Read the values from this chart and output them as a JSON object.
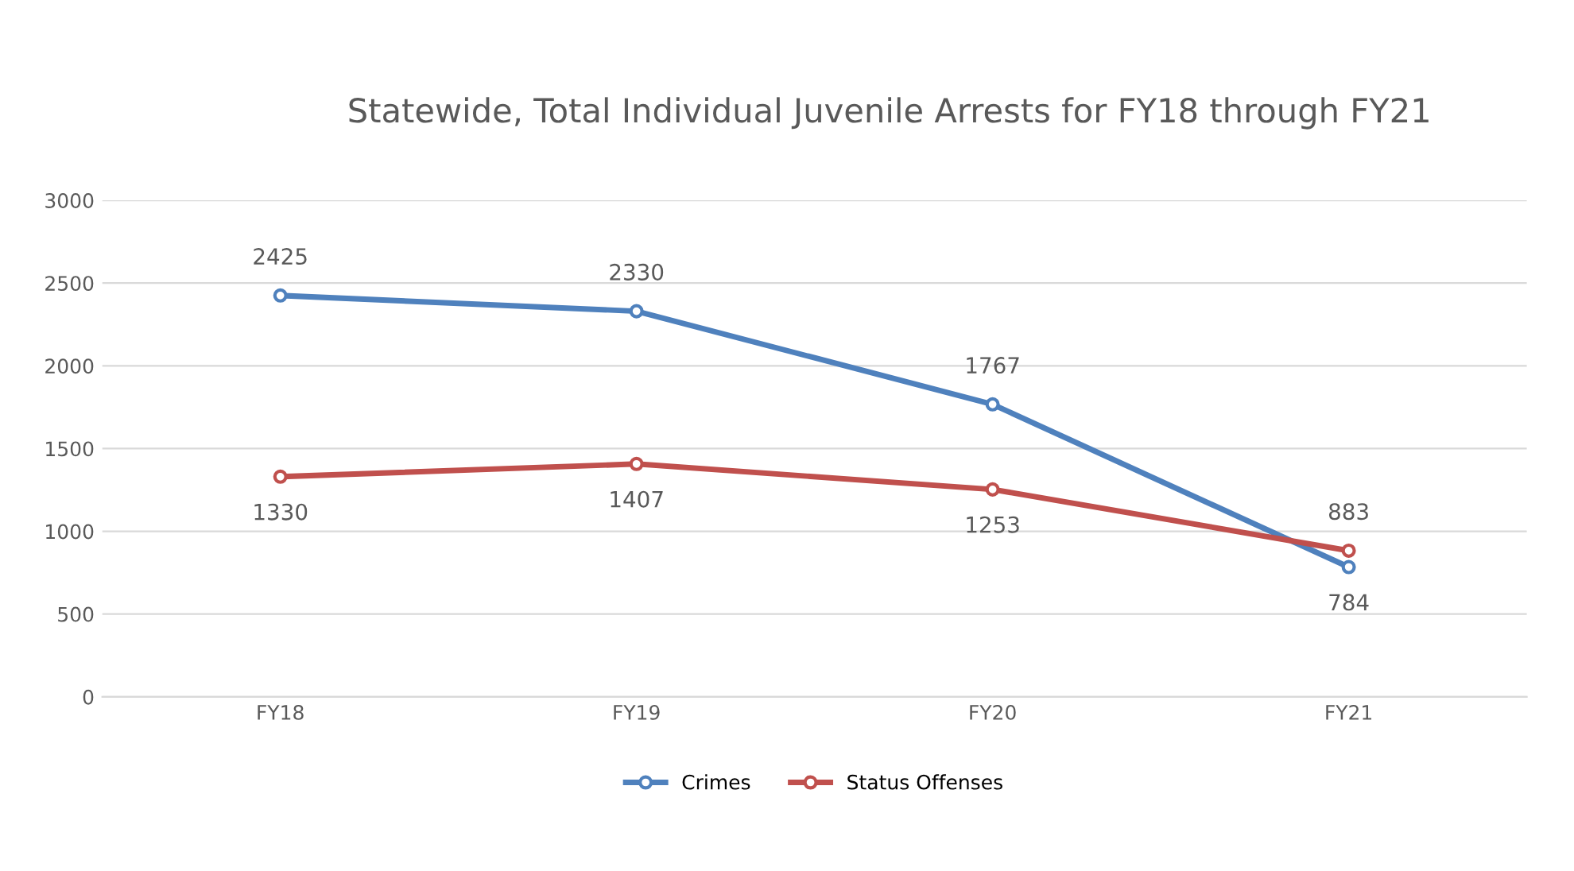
{
  "chart_data": {
    "type": "line",
    "title": "Statewide, Total Individual Juvenile Arrests for FY18 through FY21",
    "categories": [
      "FY18",
      "FY19",
      "FY20",
      "FY21"
    ],
    "series": [
      {
        "name": "Crimes",
        "color": "#4f81bd",
        "values": [
          2425,
          2330,
          1767,
          784
        ]
      },
      {
        "name": "Status Offenses",
        "color": "#c0504d",
        "values": [
          1330,
          1407,
          1253,
          883
        ]
      }
    ],
    "ylim": [
      0,
      3000
    ],
    "yticks": [
      0,
      500,
      1000,
      1500,
      2000,
      2500,
      3000
    ],
    "grid": "y",
    "legend": "bottom",
    "marker": "circle",
    "line_style": "solid",
    "data_labels": true
  }
}
